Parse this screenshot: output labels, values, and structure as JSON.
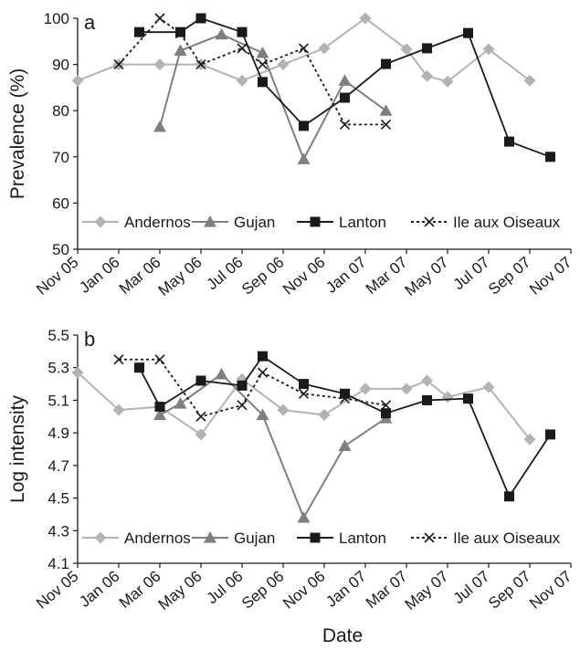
{
  "chart_data": [
    {
      "type": "line",
      "panel_label": "a",
      "ylabel": "Prevalence (%)",
      "xlabel": "",
      "ylim": [
        50,
        100
      ],
      "yticks": [
        50,
        60,
        70,
        80,
        90,
        100
      ],
      "x_tick_labels": [
        "Nov 05",
        "Jan 06",
        "Mar 06",
        "May 06",
        "Jul 06",
        "Sep 06",
        "Nov 06",
        "Jan 07",
        "Mar 07",
        "May 07",
        "Jul 07",
        "Sep 07",
        "Nov 07"
      ],
      "grid": false,
      "legend_position": "bottom",
      "series": [
        {
          "name": "Andernos",
          "color": "#b3b3b3",
          "marker": "diamond",
          "dashed": false,
          "x": [
            "Nov 05",
            "Jan 06",
            "Mar 06",
            "May 06",
            "Jul 06",
            "Sep 06",
            "Nov 06",
            "Jan 07",
            "Mar 07",
            "Apr 07",
            "May 07",
            "Jul 07",
            "Sep 07"
          ],
          "y": [
            86.5,
            90,
            90,
            90,
            86.5,
            90,
            93.5,
            100,
            93.3,
            87.5,
            86.3,
            93.3,
            86.5
          ]
        },
        {
          "name": "Gujan",
          "color": "#7f7f7f",
          "marker": "triangle",
          "dashed": false,
          "x": [
            "Mar 06",
            "Apr 06",
            "Jun 06",
            "Aug 06",
            "Oct 06",
            "Dec 06",
            "Feb 07"
          ],
          "y": [
            76.5,
            93,
            96.5,
            92.5,
            69.5,
            86.5,
            80
          ]
        },
        {
          "name": "Lanton",
          "color": "#1a1a1a",
          "marker": "square",
          "dashed": false,
          "x": [
            "Feb 06",
            "Apr 06",
            "May 06",
            "Jul 06",
            "Aug 06",
            "Oct 06",
            "Dec 06",
            "Feb 07",
            "Apr 07",
            "Jun 07",
            "Aug 07",
            "Oct 07"
          ],
          "y": [
            97,
            97,
            100,
            97,
            86.2,
            76.7,
            82.8,
            90.1,
            93.5,
            96.8,
            73.3,
            70
          ]
        },
        {
          "name": "Ile aux Oiseaux",
          "color": "#1a1a1a",
          "marker": "x",
          "dashed": true,
          "x": [
            "Jan 06",
            "Mar 06",
            "Apr 06",
            "May 06",
            "Jul 06",
            "Aug 06",
            "Oct 06",
            "Dec 06",
            "Feb 07"
          ],
          "y": [
            90,
            100,
            96.7,
            90,
            93.5,
            90,
            93.5,
            77,
            77
          ]
        }
      ]
    },
    {
      "type": "line",
      "panel_label": "b",
      "ylabel": "Log intensity",
      "xlabel": "Date",
      "ylim": [
        4.1,
        5.5
      ],
      "yticks": [
        4.1,
        4.3,
        4.5,
        4.7,
        4.9,
        5.1,
        5.3,
        5.5
      ],
      "x_tick_labels": [
        "Nov 05",
        "Jan 06",
        "Mar 06",
        "May 06",
        "Jul 06",
        "Sep 06",
        "Nov 06",
        "Jan 07",
        "Mar 07",
        "May 07",
        "Jul 07",
        "Sep 07",
        "Nov 07"
      ],
      "grid": false,
      "legend_position": "bottom",
      "series": [
        {
          "name": "Andernos",
          "color": "#b3b3b3",
          "marker": "diamond",
          "dashed": false,
          "x": [
            "Nov 05",
            "Jan 06",
            "Mar 06",
            "May 06",
            "Jul 06",
            "Sep 06",
            "Nov 06",
            "Jan 07",
            "Mar 07",
            "Apr 07",
            "May 07",
            "Jul 07",
            "Sep 07"
          ],
          "y": [
            5.27,
            5.04,
            5.06,
            4.89,
            5.23,
            5.04,
            5.01,
            5.17,
            5.17,
            5.22,
            5.12,
            5.18,
            4.86
          ]
        },
        {
          "name": "Gujan",
          "color": "#7f7f7f",
          "marker": "triangle",
          "dashed": false,
          "x": [
            "Mar 06",
            "Apr 06",
            "Jun 06",
            "Aug 06",
            "Oct 06",
            "Dec 06",
            "Feb 07"
          ],
          "y": [
            5.01,
            5.08,
            5.26,
            5.01,
            4.38,
            4.82,
            4.99
          ]
        },
        {
          "name": "Lanton",
          "color": "#1a1a1a",
          "marker": "square",
          "dashed": false,
          "x": [
            "Feb 06",
            "Mar 06",
            "May 06",
            "Jul 06",
            "Aug 06",
            "Oct 06",
            "Dec 06",
            "Feb 07",
            "Apr 07",
            "Jun 07",
            "Aug 07",
            "Oct 07"
          ],
          "y": [
            5.3,
            5.06,
            5.22,
            5.19,
            5.37,
            5.2,
            5.14,
            5.02,
            5.1,
            5.11,
            4.51,
            4.89
          ]
        },
        {
          "name": "Ile aux Oiseaux",
          "color": "#1a1a1a",
          "marker": "x",
          "dashed": true,
          "x": [
            "Jan 06",
            "Mar 06",
            "May 06",
            "Jul 06",
            "Aug 06",
            "Oct 06",
            "Dec 06",
            "Feb 07"
          ],
          "y": [
            5.35,
            5.35,
            5.0,
            5.07,
            5.27,
            5.14,
            5.11,
            5.07
          ]
        }
      ]
    }
  ]
}
